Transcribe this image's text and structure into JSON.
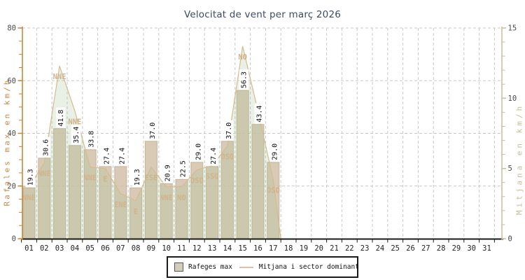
{
  "page": {
    "title": "Velocitat de vent per març 2026"
  },
  "chart_data": {
    "type": "bar",
    "combo": "bars (max gusts, left axis) + area-line (mean wind with dominant sector, right axis)",
    "title": "Velocitat de vent per març 2026",
    "x_tick_labels": [
      "01",
      "02",
      "03",
      "04",
      "05",
      "06",
      "07",
      "08",
      "09",
      "10",
      "11",
      "12",
      "13",
      "14",
      "15",
      "16",
      "17",
      "18",
      "19",
      "20",
      "21",
      "22",
      "23",
      "24",
      "25",
      "26",
      "27",
      "28",
      "29",
      "30",
      "31"
    ],
    "days_with_data": 17,
    "left_axis": {
      "label": "Rafales max en km/h",
      "min": 0,
      "max": 80,
      "major_ticks": [
        0,
        20,
        40,
        60,
        80
      ],
      "minor_step": 5
    },
    "right_axis": {
      "label": "Mitjana en km/h",
      "min": 0,
      "max": 15,
      "major_ticks": [
        0,
        5,
        10,
        15
      ],
      "minor_step": 1
    },
    "series": [
      {
        "name": "Rafeges max",
        "type": "bar",
        "axis": "left",
        "unit": "km/h",
        "values": [
          "19.3",
          "30.6",
          "41.8",
          "35.4",
          "33.8",
          "27.4",
          "27.4",
          "19.3",
          "37.0",
          "20.9",
          "22.5",
          "29.0",
          "27.4",
          "37.0",
          "56.3",
          "43.4",
          "29.0"
        ]
      },
      {
        "name": "Mitjana i sector dominant",
        "type": "area-line",
        "axis": "right",
        "unit": "km/h",
        "values": [
          3.7,
          5.4,
          12.3,
          9.1,
          5.1,
          5.0,
          3.2,
          2.7,
          5.1,
          3.7,
          3.7,
          4.9,
          5.2,
          6.6,
          13.7,
          9.1,
          4.2
        ],
        "directions": [
          "NNE",
          "NNE",
          "NNE",
          "NNE",
          "NNE",
          "E",
          "ENE",
          "E",
          "ESE",
          "NNE",
          "NO",
          "OSO",
          "SSO",
          "OSO",
          "NO",
          "",
          "OSO"
        ]
      }
    ],
    "legend": {
      "bar_label": "Rafeges max",
      "line_label": "Mitjana i sector dominant",
      "position": "bottom-center"
    },
    "grid": {
      "horizontal_at": [
        20,
        40,
        60,
        80
      ],
      "vertical": "day boundaries",
      "style": "dashed"
    },
    "colors": {
      "title": "#3d4a63",
      "left_axis": "#c8812f",
      "left_axis_label": "#c28a45",
      "right_axis": "#c9bd9b",
      "right_axis_label": "#c6bc9c",
      "bottom_axis": "#1a1a1a",
      "tick_label": "#4a4a4a",
      "day_label": "#222222",
      "grid": "#c8c8c8",
      "bar_fill": "#d9cbb5",
      "bar_border": "#c2ae92",
      "area_fill_over_white": "#eaf1e6",
      "area_line": "#d6ba90",
      "direction_label": "#cfb38b",
      "value_label": "#111111"
    }
  }
}
